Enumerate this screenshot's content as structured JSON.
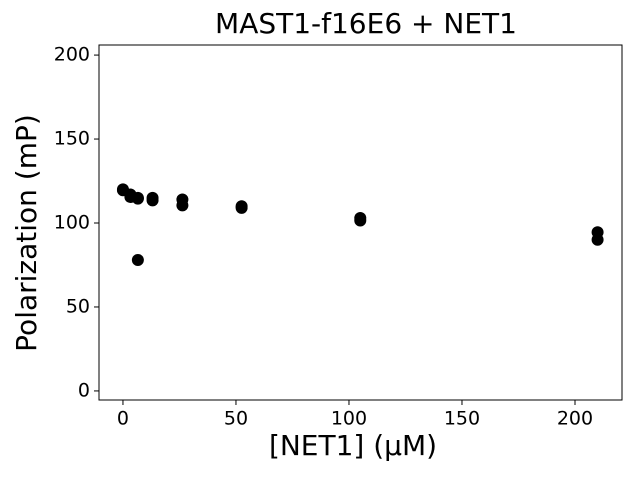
{
  "chart_data": {
    "type": "scatter",
    "title": "MAST1-f16E6 + NET1",
    "x_label": "[NET1] (μM)",
    "y_label": "Polarization (mP)",
    "x": [
      0,
      0,
      3.3,
      3.3,
      6.6,
      6.6,
      6.6,
      13.1,
      13.1,
      26.3,
      26.3,
      52.5,
      52.5,
      105,
      105,
      210,
      210
    ],
    "values": [
      119.5,
      120,
      117,
      115.5,
      114.5,
      115,
      78,
      115,
      113.5,
      114,
      110.5,
      110,
      109,
      103,
      101.5,
      94.5,
      90
    ],
    "color": "#000000",
    "xlim": [
      -10.6,
      220.8
    ],
    "xticks": [
      0,
      50,
      100,
      150,
      200
    ],
    "ylim": [
      -5.4,
      206
    ],
    "yticks": [
      0,
      50,
      100,
      150,
      200
    ]
  }
}
